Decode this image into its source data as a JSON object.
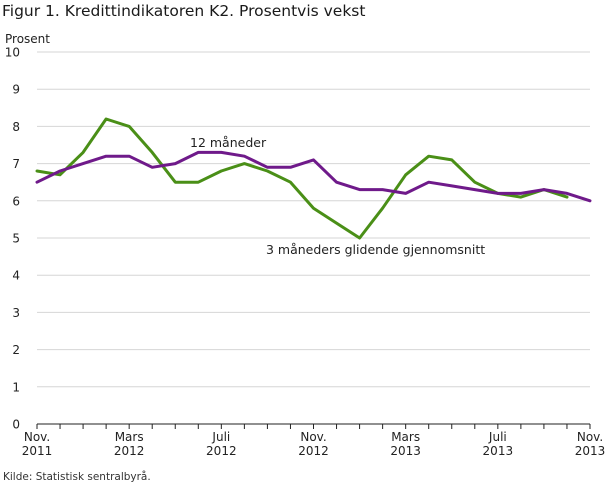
{
  "page": {
    "title": "Figur 1. Kredittindikatoren K2. Prosentvis vekst",
    "source": "Kilde: Statistisk sentralbyrå."
  },
  "chart_data": {
    "type": "line",
    "title": "Figur 1. Kredittindikatoren K2. Prosentvis vekst",
    "ylabel": "Prosent",
    "xlabel": "",
    "ylim": [
      0,
      10
    ],
    "y_ticks": [
      0,
      1,
      2,
      3,
      4,
      5,
      6,
      7,
      8,
      9,
      10
    ],
    "grid": true,
    "x": [
      "Nov. 2011",
      "Des. 2011",
      "Jan. 2012",
      "Feb. 2012",
      "Mars 2012",
      "Apr. 2012",
      "Mai 2012",
      "Juni 2012",
      "Juli 2012",
      "Aug. 2012",
      "Sep. 2012",
      "Okt. 2012",
      "Nov. 2012",
      "Des. 2012",
      "Jan. 2013",
      "Feb. 2013",
      "Mars 2013",
      "Apr. 2013",
      "Mai 2013",
      "Juni 2013",
      "Juli 2013",
      "Aug. 2013",
      "Sep. 2013",
      "Okt. 2013",
      "Nov. 2013"
    ],
    "x_tick_labels": [
      {
        "index": 0,
        "line1": "Nov.",
        "line2": "2011"
      },
      {
        "index": 4,
        "line1": "Mars",
        "line2": "2012"
      },
      {
        "index": 8,
        "line1": "Juli",
        "line2": "2012"
      },
      {
        "index": 12,
        "line1": "Nov.",
        "line2": "2012"
      },
      {
        "index": 16,
        "line1": "Mars",
        "line2": "2013"
      },
      {
        "index": 20,
        "line1": "Juli",
        "line2": "2013"
      },
      {
        "index": 24,
        "line1": "Nov.",
        "line2": "2013"
      }
    ],
    "series": [
      {
        "name": "12 måneder",
        "color": "#6f1a8a",
        "values": [
          6.5,
          6.8,
          7.0,
          7.2,
          7.2,
          6.9,
          7.0,
          7.3,
          7.3,
          7.2,
          6.9,
          6.9,
          7.1,
          6.5,
          6.3,
          6.3,
          6.2,
          6.5,
          6.4,
          6.3,
          6.2,
          6.2,
          6.3,
          6.2,
          6.0
        ]
      },
      {
        "name": "3 måneders glidende gjennomsnitt",
        "color": "#4a8f17",
        "values": [
          6.8,
          6.7,
          7.3,
          8.2,
          8.0,
          7.3,
          6.5,
          6.5,
          6.8,
          7.0,
          6.8,
          6.5,
          5.8,
          5.4,
          5.0,
          5.8,
          6.7,
          7.2,
          7.1,
          6.5,
          6.2,
          6.1,
          6.3,
          6.1,
          null
        ]
      }
    ],
    "annotations": [
      {
        "text": "12 måneder",
        "series": "12 måneder"
      },
      {
        "text": "3 måneders glidende gjennomsnitt",
        "series": "3 måneders glidende gjennomsnitt"
      }
    ]
  }
}
